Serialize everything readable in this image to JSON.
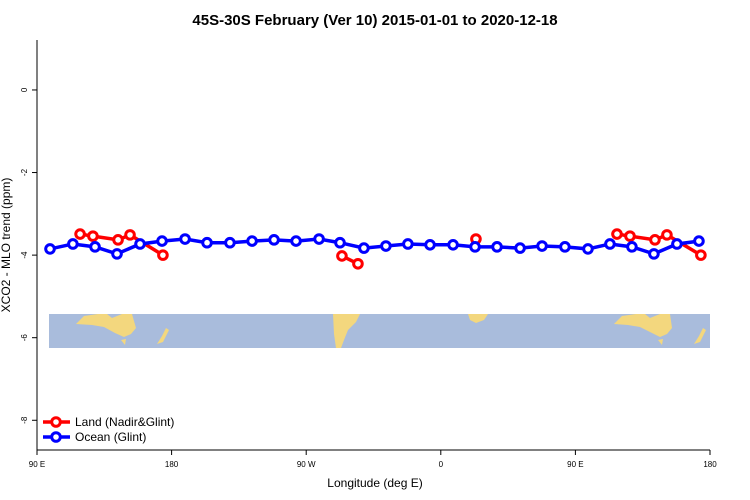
{
  "chart_data": {
    "type": "line",
    "title": "45S-30S February (Ver 10)   2015-01-01 to 2020-12-18",
    "x_label": "Longitude (deg E)",
    "y_label": "XCO2 - MLO trend (ppm)",
    "xlim": [
      90,
      540
    ],
    "ylim": [
      -8.72,
      1.21
    ],
    "xticks": [
      {
        "value": 90,
        "label": "90 E"
      },
      180,
      {
        "value": 270,
        "label": "90 W"
      },
      {
        "value": 360,
        "label": "0"
      },
      {
        "value": 450,
        "label": "90 E"
      },
      {
        "value": 540,
        "label": "180"
      }
    ],
    "yticks": [
      0,
      -2,
      -4,
      -6,
      -8
    ],
    "legend": "bottom-left",
    "series": [
      {
        "name": "Land (Nadir&Glint)",
        "color": "#ff0000",
        "x": [
          118.8,
          127.4,
          144.2,
          152.2,
          174.2,
          null,
          293.9,
          304.6,
          null,
          383.5,
          null,
          477.8,
          486.5,
          503.2,
          511.2,
          533.9
        ],
        "values": [
          -3.49,
          -3.54,
          -3.63,
          -3.51,
          -4.0,
          null,
          -4.02,
          -4.21,
          null,
          -3.61,
          null,
          -3.49,
          -3.54,
          -3.63,
          -3.51,
          -4.0
        ]
      },
      {
        "name": "Ocean (Glint)",
        "color": "#0000ff",
        "x": [
          98.7,
          114,
          128.8,
          143.5,
          158.9,
          173.6,
          189,
          203.7,
          219,
          233.8,
          248.5,
          263.2,
          278.6,
          292.6,
          308.6,
          323.3,
          338,
          352.8,
          368.2,
          382.9,
          397.6,
          413,
          427.7,
          443,
          458.4,
          473.1,
          487.8,
          502.5,
          517.9,
          532.6
        ],
        "values": [
          -3.85,
          -3.73,
          -3.8,
          -3.97,
          -3.73,
          -3.66,
          -3.61,
          -3.7,
          -3.7,
          -3.66,
          -3.63,
          -3.66,
          -3.61,
          -3.7,
          -3.83,
          -3.78,
          -3.73,
          -3.75,
          -3.75,
          -3.8,
          -3.8,
          -3.83,
          -3.78,
          -3.8,
          -3.85,
          -3.73,
          -3.8,
          -3.97,
          -3.73,
          -3.66
        ]
      }
    ]
  }
}
